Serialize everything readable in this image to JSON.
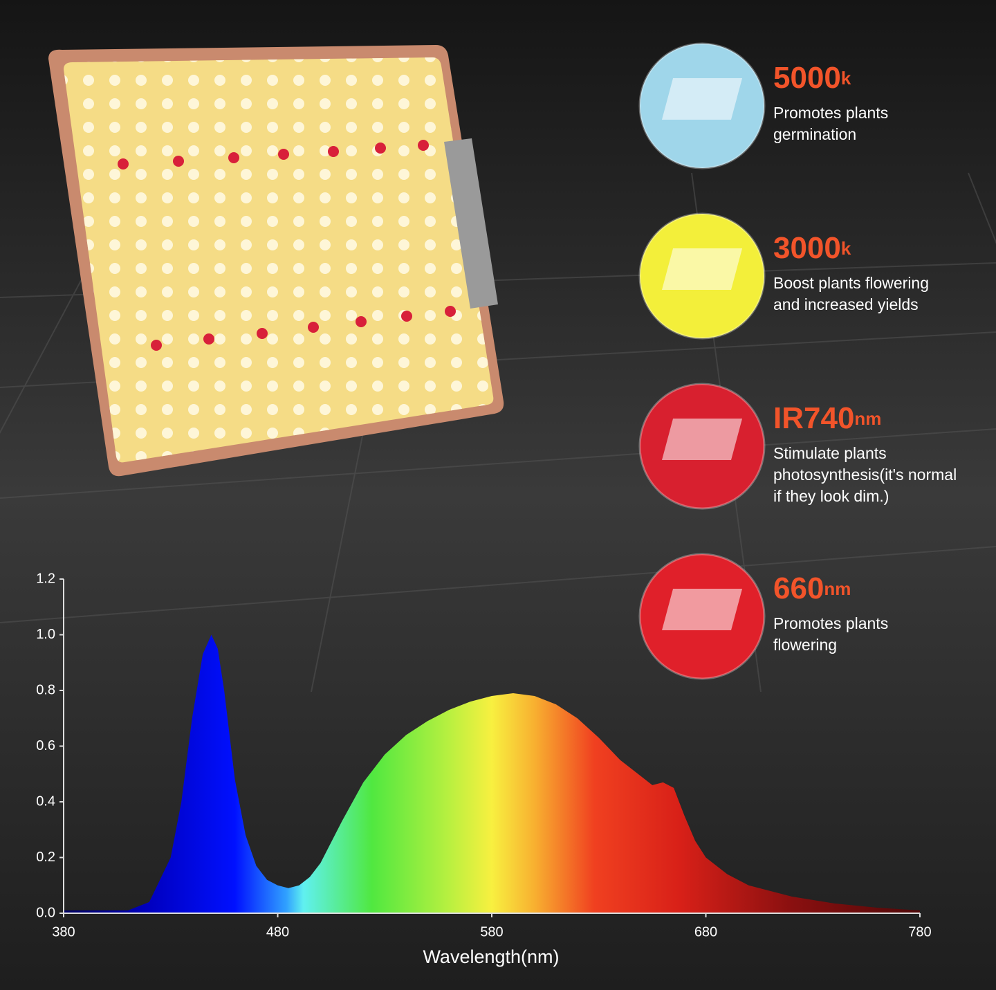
{
  "chart_data": {
    "type": "area",
    "xlabel": "Wavelength(nm)",
    "x": [
      380,
      400,
      410,
      420,
      430,
      435,
      440,
      445,
      449,
      452,
      455,
      460,
      465,
      470,
      475,
      480,
      485,
      490,
      495,
      500,
      510,
      520,
      530,
      540,
      550,
      560,
      570,
      580,
      590,
      600,
      610,
      620,
      630,
      640,
      650,
      655,
      660,
      665,
      670,
      675,
      680,
      690,
      700,
      720,
      740,
      760,
      780
    ],
    "values": [
      0.01,
      0.01,
      0.01,
      0.04,
      0.2,
      0.4,
      0.7,
      0.93,
      1.0,
      0.95,
      0.8,
      0.48,
      0.28,
      0.17,
      0.12,
      0.1,
      0.09,
      0.1,
      0.13,
      0.18,
      0.33,
      0.47,
      0.57,
      0.64,
      0.69,
      0.73,
      0.76,
      0.78,
      0.79,
      0.78,
      0.75,
      0.7,
      0.63,
      0.55,
      0.49,
      0.46,
      0.47,
      0.45,
      0.35,
      0.26,
      0.2,
      0.14,
      0.1,
      0.06,
      0.035,
      0.02,
      0.01
    ],
    "xlim": [
      380,
      780
    ],
    "xticks": [
      380,
      480,
      580,
      680,
      780
    ],
    "ylim": [
      0,
      1.2
    ],
    "yticks": [
      {
        "value": 0,
        "label": "0.0"
      },
      {
        "value": 0.2,
        "label": "0.2"
      },
      {
        "value": 0.4,
        "label": "0.4"
      },
      {
        "value": 0.6,
        "label": "0.6"
      },
      {
        "value": 0.8,
        "label": "0.8"
      },
      {
        "value": 1.0,
        "label": "1.0"
      },
      {
        "value": 1.2,
        "label": "1.2"
      }
    ]
  },
  "features": [
    {
      "value": "5000",
      "unit": "k",
      "lines": [
        "Promotes plants",
        "germination"
      ],
      "color": "#9fd6ea"
    },
    {
      "value": "3000",
      "unit": "k",
      "lines": [
        "Boost plants flowering",
        "and increased yields"
      ],
      "color": "#f3ef3a"
    },
    {
      "value": "IR740",
      "unit": "nm",
      "lines": [
        "Stimulate plants",
        "photosynthesis(it's normal",
        "if they look dim.)"
      ],
      "color": "#d8202f"
    },
    {
      "value": "660",
      "unit": "nm",
      "lines": [
        "Promotes plants",
        "flowering"
      ],
      "color": "#e0202a"
    }
  ]
}
